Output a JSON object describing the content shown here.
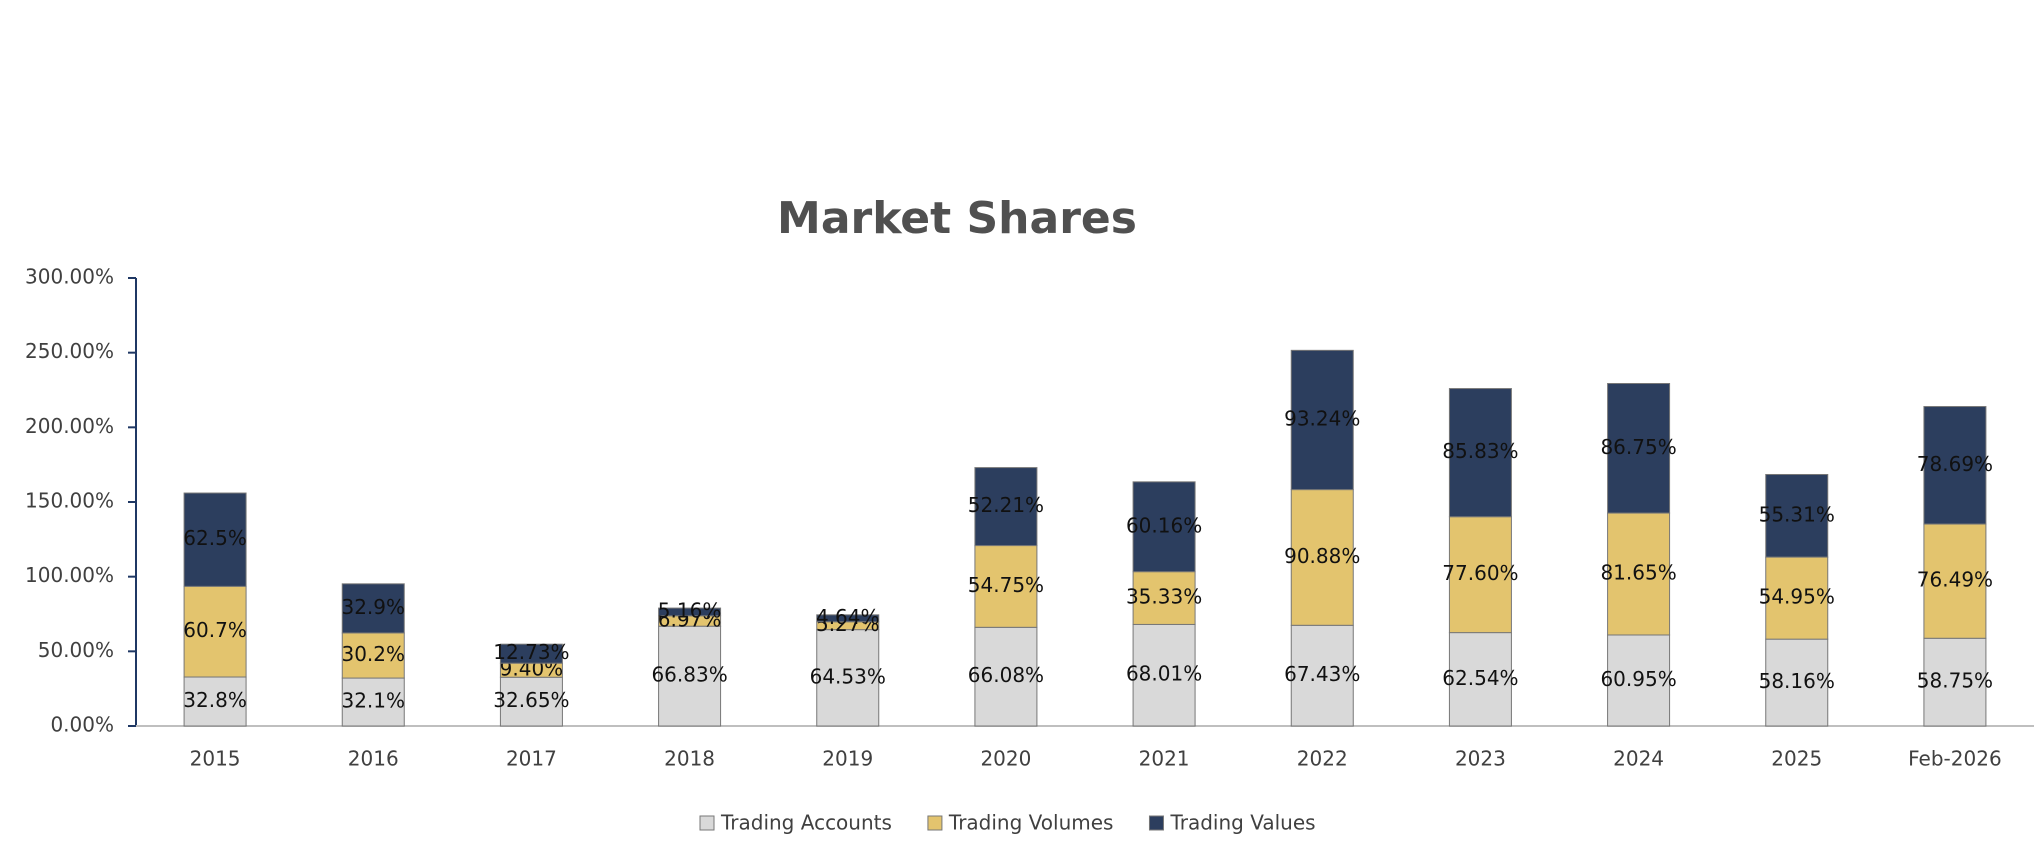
{
  "chart_data": {
    "type": "stacked_bar",
    "title": "Market Shares",
    "categories": [
      "2015",
      "2016",
      "2017",
      "2018",
      "2019",
      "2020",
      "2021",
      "2022",
      "2023",
      "2024",
      "2025",
      "Feb-2026"
    ],
    "series": [
      {
        "name": "Trading Accounts",
        "color": "#d9d9d9",
        "values": [
          32.8,
          32.1,
          32.65,
          66.83,
          64.53,
          66.08,
          68.01,
          67.43,
          62.54,
          60.95,
          58.16,
          58.75
        ],
        "value_labels": [
          "32.8%",
          "32.1%",
          "32.65%",
          "66.83%",
          "64.53%",
          "66.08%",
          "68.01%",
          "67.43%",
          "62.54%",
          "60.95%",
          "58.16%",
          "58.75%"
        ]
      },
      {
        "name": "Trading Volumes",
        "color": "#e3c46e",
        "values": [
          60.7,
          30.2,
          9.4,
          6.97,
          5.27,
          54.75,
          35.33,
          90.88,
          77.6,
          81.65,
          54.95,
          76.49
        ],
        "value_labels": [
          "60.7%",
          "30.2%",
          "9.40%",
          "6.97%",
          "5.27%",
          "54.75%",
          "35.33%",
          "90.88%",
          "77.60%",
          "81.65%",
          "54.95%",
          "76.49%"
        ]
      },
      {
        "name": "Trading Values",
        "color": "#2c3e5e",
        "values": [
          62.5,
          32.9,
          12.73,
          5.16,
          4.64,
          52.21,
          60.16,
          93.24,
          85.83,
          86.75,
          55.31,
          78.69
        ],
        "value_labels": [
          "62.5%",
          "32.9%",
          "12.73%",
          "5.16%",
          "4.64%",
          "52.21%",
          "60.16%",
          "93.24%",
          "85.83%",
          "86.75%",
          "55.31%",
          "78.69%"
        ]
      }
    ],
    "ylim": [
      0,
      300
    ],
    "yticks": [
      {
        "value": 0,
        "label": "0.00%"
      },
      {
        "value": 50,
        "label": "50.00%"
      },
      {
        "value": 100,
        "label": "100.00%"
      },
      {
        "value": 150,
        "label": "150.00%"
      },
      {
        "value": 200,
        "label": "200.00%"
      },
      {
        "value": 250,
        "label": "250.00%"
      },
      {
        "value": 300,
        "label": "300.00%"
      }
    ],
    "legend": "bottom"
  }
}
